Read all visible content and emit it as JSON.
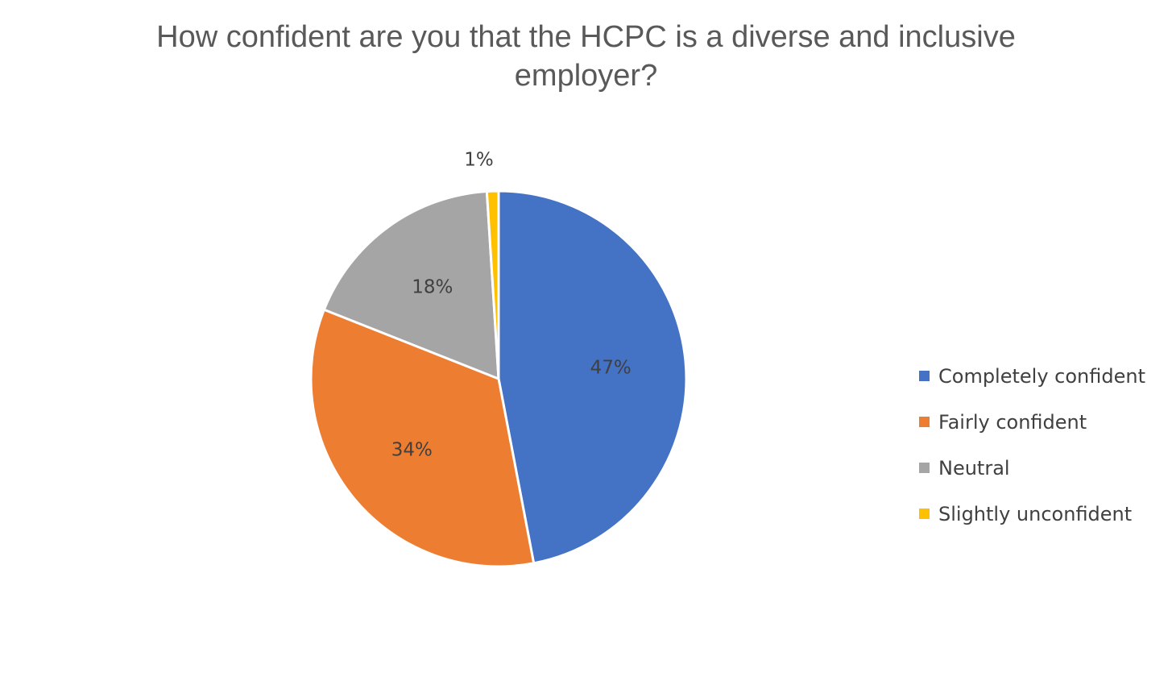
{
  "chart_data": {
    "type": "pie",
    "title": "How confident are you that the HCPC is a diverse and inclusive employer?",
    "title_lines": [
      "How confident are you that the HCPC is a diverse and inclusive",
      "employer?"
    ],
    "categories": [
      "Completely confident",
      "Fairly confident",
      "Neutral",
      "Slightly unconfident"
    ],
    "values": [
      47,
      34,
      18,
      1
    ],
    "data_labels": [
      "47%",
      "34%",
      "18%",
      "1%"
    ],
    "colors": [
      "#4472C4",
      "#ED7D31",
      "#A5A5A5",
      "#FFC000"
    ],
    "legend_position": "right",
    "start_angle": "12 o'clock, clockwise"
  }
}
